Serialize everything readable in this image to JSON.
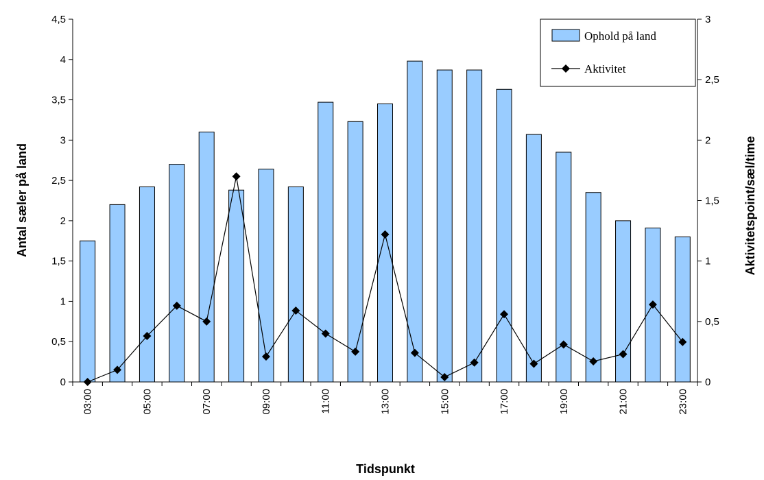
{
  "chart_data": {
    "type": "bar",
    "categories": [
      "03:00",
      "04:00",
      "05:00",
      "06:00",
      "07:00",
      "08:00",
      "09:00",
      "10:00",
      "11:00",
      "12:00",
      "13:00",
      "14:00",
      "15:00",
      "16:00",
      "17:00",
      "18:00",
      "19:00",
      "20:00",
      "21:00",
      "22:00",
      "23:00"
    ],
    "x_tick_labels": [
      "03:00",
      "",
      "05:00",
      "",
      "07:00",
      "",
      "09:00",
      "",
      "11:00",
      "",
      "13:00",
      "",
      "15:00",
      "",
      "17:00",
      "",
      "19:00",
      "",
      "21:00",
      "",
      "23:00"
    ],
    "series": [
      {
        "name": "Ophold på land",
        "type": "bar",
        "axis": "left",
        "color": "#99ccff",
        "values": [
          1.75,
          2.2,
          2.42,
          2.7,
          3.1,
          2.38,
          2.64,
          2.42,
          3.47,
          3.23,
          3.45,
          3.98,
          3.87,
          3.87,
          3.63,
          3.07,
          2.85,
          2.35,
          2.0,
          1.91,
          1.8
        ]
      },
      {
        "name": "Aktivitet",
        "type": "line",
        "axis": "right",
        "color": "#000000",
        "marker": "diamond",
        "values": [
          0.0,
          0.1,
          0.38,
          0.63,
          0.5,
          1.7,
          0.21,
          0.59,
          0.4,
          0.25,
          1.22,
          0.24,
          0.04,
          0.16,
          0.56,
          0.15,
          0.31,
          0.17,
          0.23,
          0.64,
          0.33
        ]
      }
    ],
    "xlabel": "Tidspunkt",
    "ylabel": "Antal sæler på land",
    "y2label": "Aktivitetspoint/sæl/time",
    "ylim": [
      0,
      4.5
    ],
    "y2lim": [
      0,
      3
    ],
    "y_ticks": [
      "0",
      "0,5",
      "1",
      "1,5",
      "2",
      "2,5",
      "3",
      "3,5",
      "4",
      "4,5"
    ],
    "y2_ticks": [
      "0",
      "0,5",
      "1",
      "1,5",
      "2",
      "2,5",
      "3"
    ],
    "grid": false,
    "legend_position": "top-right"
  }
}
